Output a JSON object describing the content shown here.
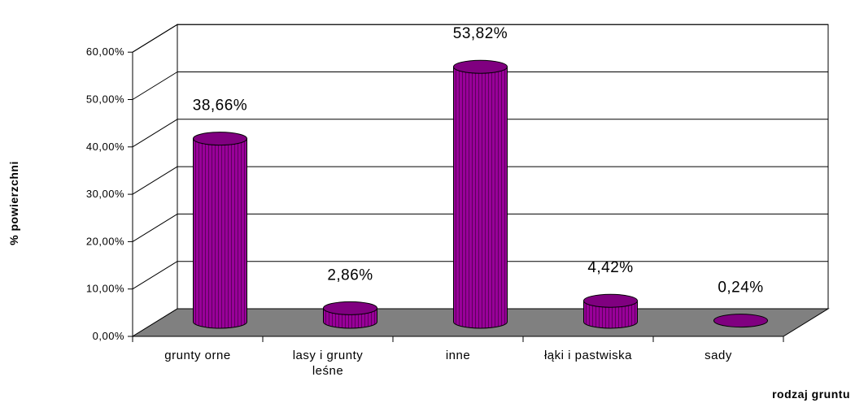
{
  "chart_data": {
    "type": "bar",
    "style": "3d-cylinder",
    "categories": [
      "grunty orne",
      "lasy i grunty leśne",
      "inne",
      "łąki i pastwiska",
      "sady"
    ],
    "category_lines": [
      [
        "grunty orne"
      ],
      [
        "lasy i grunty",
        "leśne"
      ],
      [
        "inne"
      ],
      [
        "łąki i pastwiska"
      ],
      [
        "sady"
      ]
    ],
    "values": [
      38.66,
      2.86,
      53.82,
      4.42,
      0.24
    ],
    "data_labels": [
      "38,66%",
      "2,86%",
      "53,82%",
      "4,42%",
      "0,24%"
    ],
    "ylabel": "% powierzchni",
    "xlabel": "rodzaj gruntu",
    "ylim": [
      0,
      60
    ],
    "yticks": [
      "0,00%",
      "10,00%",
      "20,00%",
      "30,00%",
      "40,00%",
      "50,00%",
      "60,00%"
    ],
    "grid": true,
    "colors": {
      "bar": "#990099",
      "bar_top": "#800080",
      "bar_stripe": "#5c005c",
      "floor": "#808080",
      "wall": "#ffffff",
      "line": "#000000"
    }
  }
}
